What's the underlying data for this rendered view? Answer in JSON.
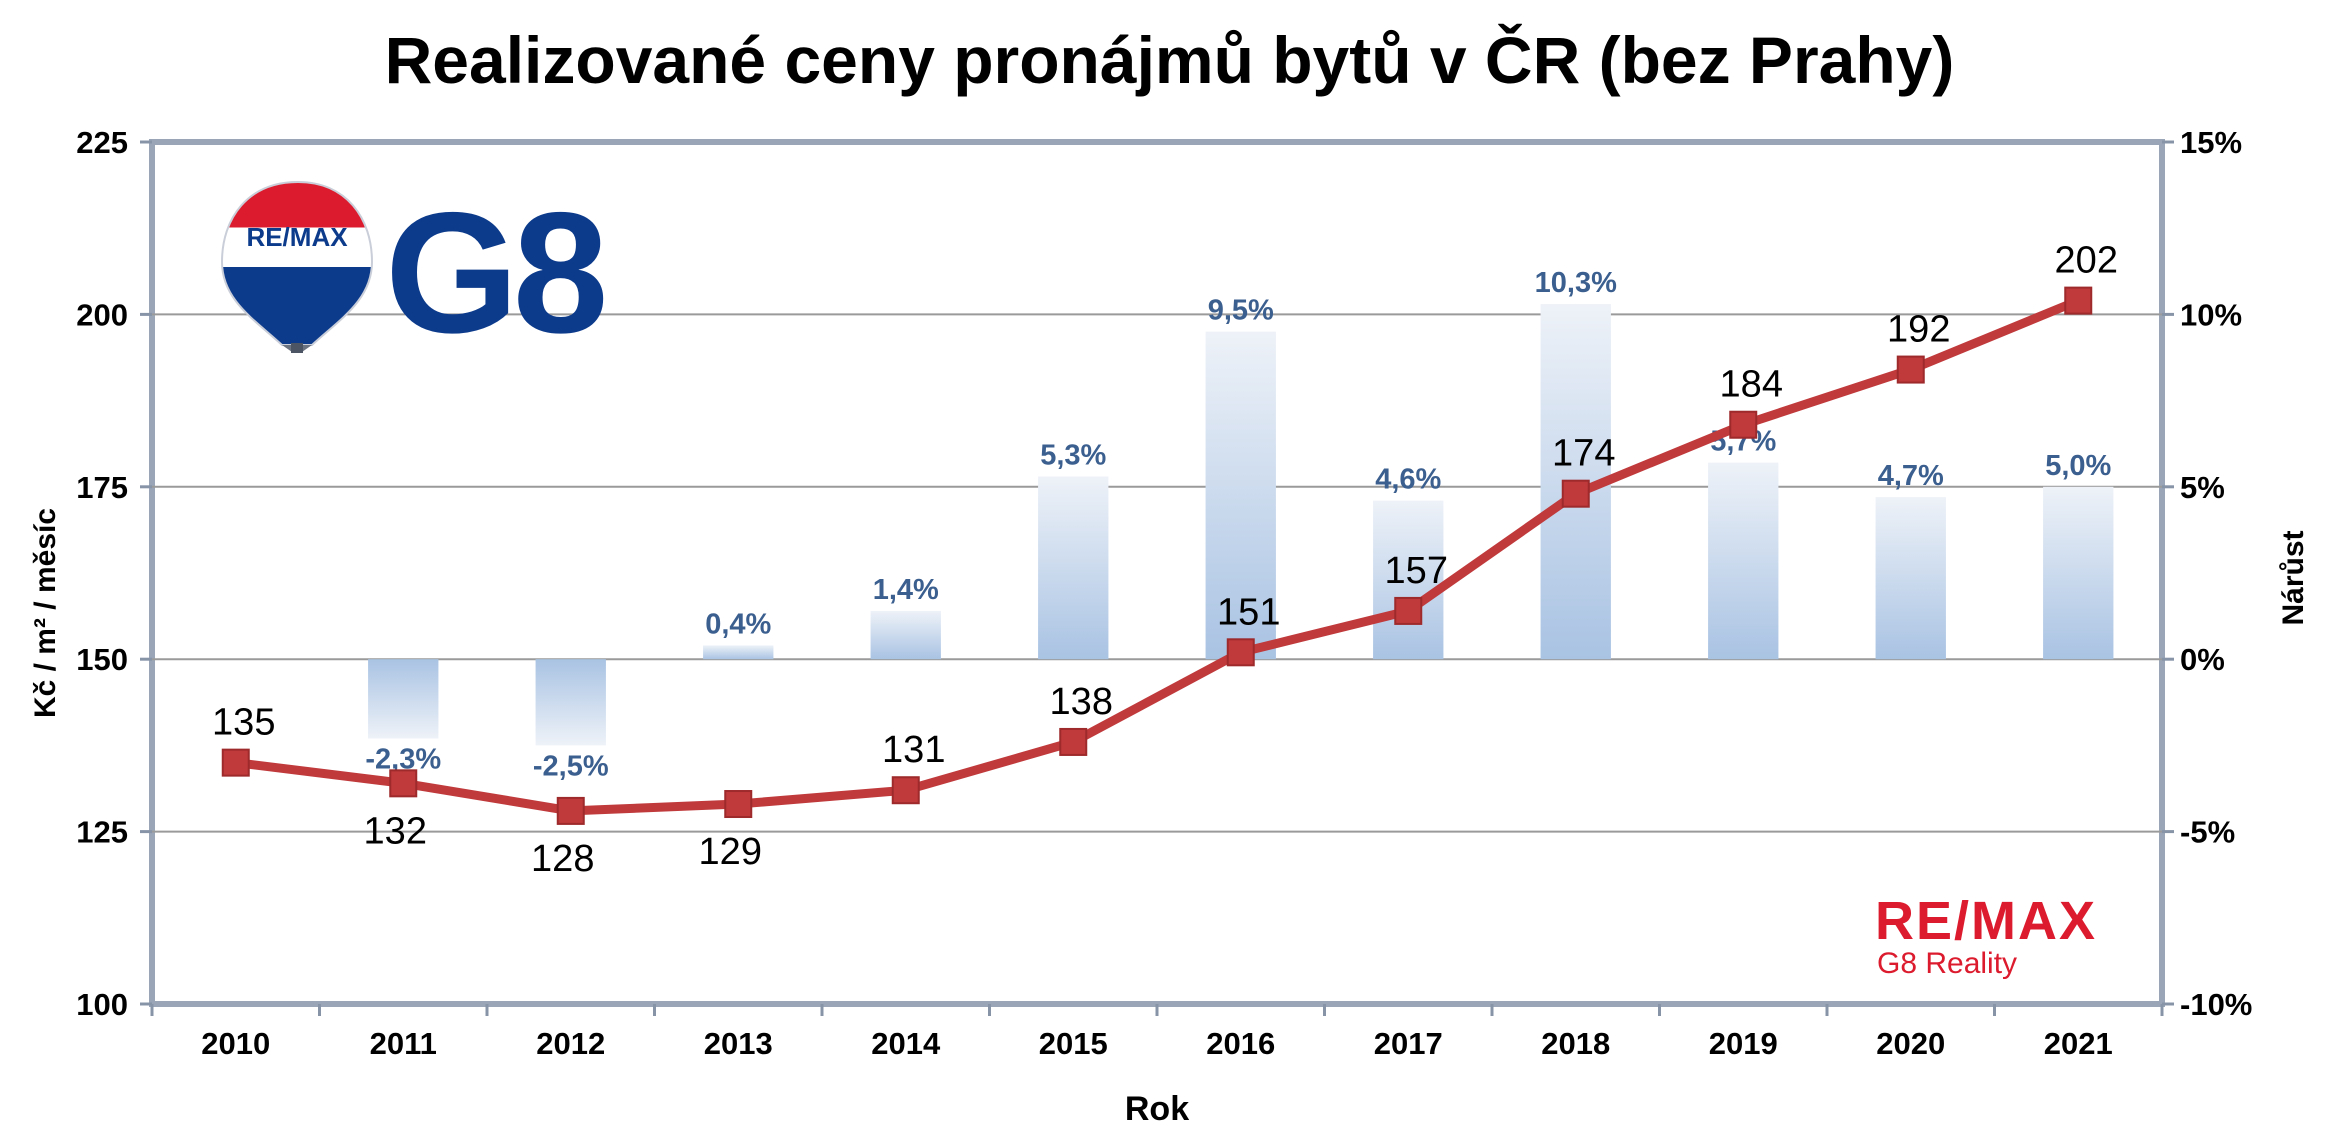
{
  "chart_data": {
    "type": "bar+line",
    "title": "Realizované ceny pronájmů bytů v ČR (bez Prahy)",
    "xlabel": "Rok",
    "ylabel_left": "Kč / m² / měsíc",
    "ylabel_right": "Nárůst",
    "categories": [
      "2010",
      "2011",
      "2012",
      "2013",
      "2014",
      "2015",
      "2016",
      "2017",
      "2018",
      "2019",
      "2020",
      "2021"
    ],
    "yleft": {
      "min": 100,
      "max": 225,
      "ticks": [
        "100",
        "125",
        "150",
        "175",
        "200",
        "225"
      ]
    },
    "yright": {
      "min": -10,
      "max": 15,
      "ticks": [
        "-10%",
        "-5%",
        "0%",
        "5%",
        "10%",
        "15%"
      ]
    },
    "grid": true,
    "series": [
      {
        "kind": "line",
        "axis": "left",
        "color": "#c0393b",
        "values": [
          135,
          132,
          128,
          129,
          131,
          138,
          151,
          157,
          174,
          184,
          192,
          202
        ],
        "labels": [
          "135",
          "132",
          "128",
          "129",
          "131",
          "138",
          "151",
          "157",
          "174",
          "184",
          "192",
          "202"
        ]
      },
      {
        "kind": "bar",
        "axis": "right",
        "color": "#a9c3e3",
        "values": [
          null,
          -2.3,
          -2.5,
          0.4,
          1.4,
          5.3,
          9.5,
          4.6,
          10.3,
          5.7,
          4.7,
          5.0
        ],
        "labels": [
          "",
          "-2,3%",
          "-2,5%",
          "0,4%",
          "1,4%",
          "5,3%",
          "9,5%",
          "4,6%",
          "10,3%",
          "5,7%",
          "4,7%",
          "5,0%"
        ]
      }
    ]
  },
  "logos": {
    "balloon_text": "RE/MAX",
    "g8_text": "G8",
    "remax_text": "RE/MAX",
    "g8_reality_text": "G8 Reality",
    "brand_red": "#dc1c2e",
    "brand_blue": "#0d3b8c"
  }
}
